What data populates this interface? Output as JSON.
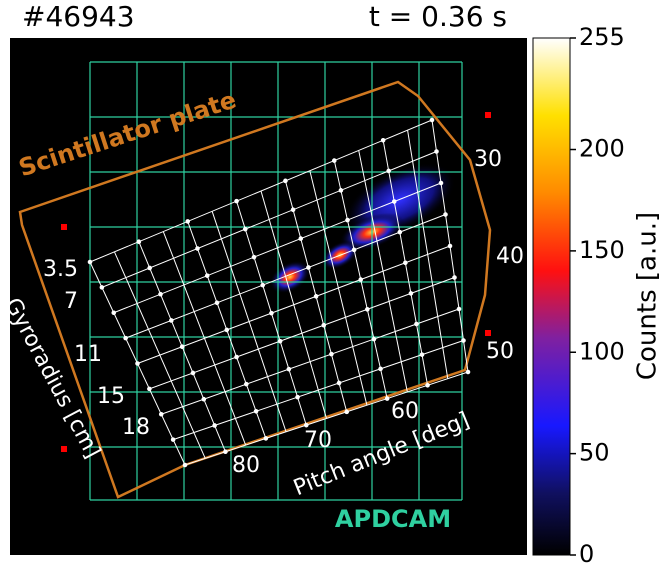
{
  "title": "#46943",
  "time": "t = 0.36 s",
  "overlay": {
    "plate": "Scintillator plate",
    "camera": "APDCAM",
    "gyroradius_label": "Gyroradius [cm]",
    "pitch_label": "Pitch angle [deg]",
    "gyroradius_ticks": [
      3.5,
      7,
      11,
      15,
      18
    ],
    "pitch_ticks": [
      30,
      40,
      50,
      60,
      70,
      80
    ]
  },
  "colorbar": {
    "label": "Counts [a.u.]",
    "lim": [
      0,
      255
    ],
    "ticks": [
      0,
      50,
      100,
      150,
      200,
      255
    ]
  }
}
